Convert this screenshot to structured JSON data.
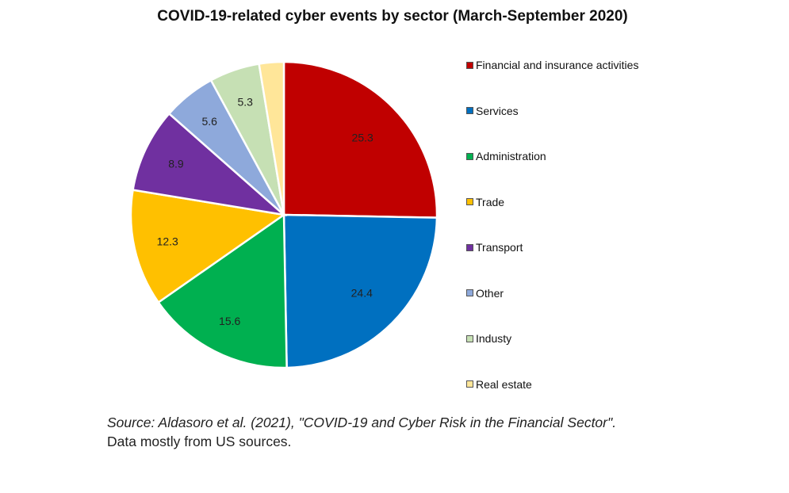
{
  "chart_data": {
    "type": "pie",
    "title": "COVID-19-related cyber events by sector (March-September 2020)",
    "categories": [
      "Financial and insurance activities",
      "Services",
      "Administration",
      "Trade",
      "Transport",
      "Other",
      "Industy",
      "Real estate"
    ],
    "values": [
      25.3,
      24.4,
      15.6,
      12.3,
      8.9,
      5.6,
      5.3,
      2.6
    ],
    "data_labels": [
      "25.3",
      "24.4",
      "15.6",
      "12.3",
      "8.9",
      "5.6",
      "5.3",
      ""
    ],
    "colors": [
      "#C00000",
      "#0070C0",
      "#00B050",
      "#FFC000",
      "#7030A0",
      "#8EA9DB",
      "#C6E0B4",
      "#FFE699"
    ],
    "legend_position": "right",
    "start": "top",
    "direction": "clockwise"
  },
  "notes": {
    "source": "Source: Aldasoro et al. (2021), \"COVID-19 and Cyber Risk in the Financial Sector\".",
    "data_note": "Data mostly from US sources."
  }
}
